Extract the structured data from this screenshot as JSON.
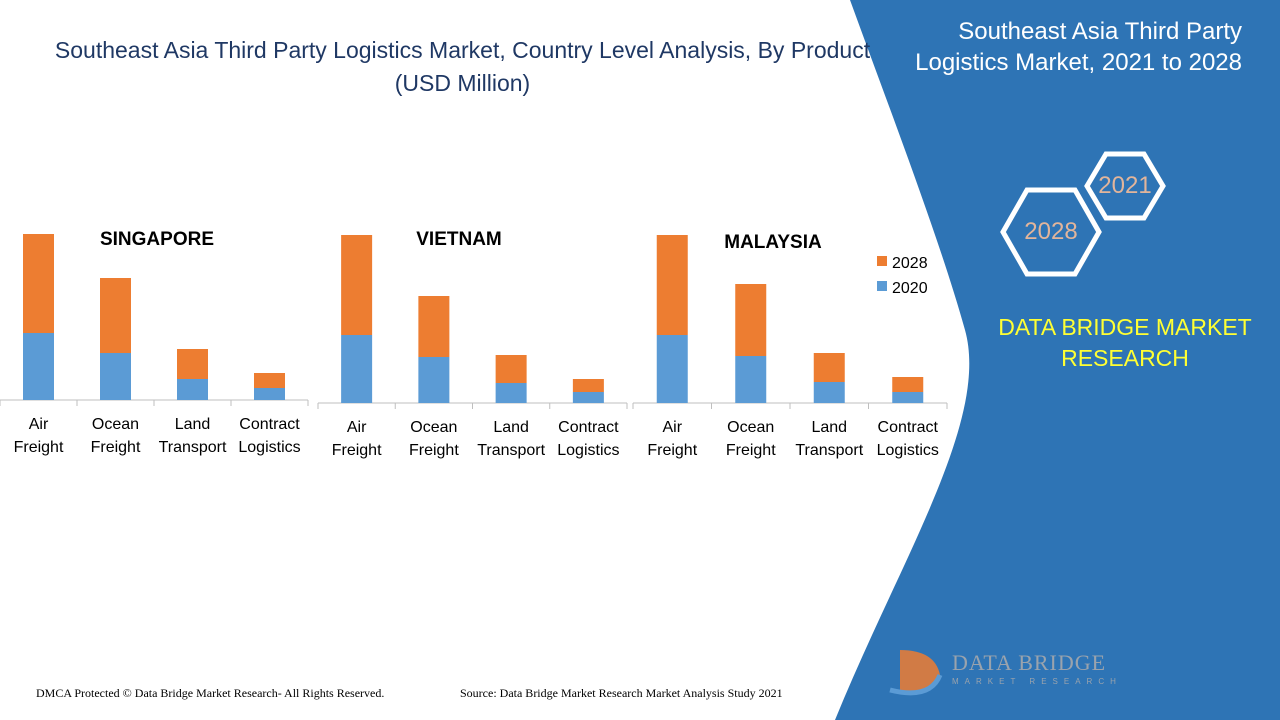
{
  "title": "Southeast Asia Third Party Logistics Market, Country Level Analysis, By Product  (USD Million)",
  "side_panel": {
    "title": "Southeast Asia Third Party Logistics Market, 2021 to 2028",
    "hex_a": "2028",
    "hex_b": "2021",
    "brand": "DATA BRIDGE MARKET RESEARCH"
  },
  "footer": {
    "left": "DMCA Protected © Data Bridge Market Research- All Rights Reserved.",
    "right": "Source: Data Bridge Market Research Market Analysis Study 2021"
  },
  "logo": {
    "name": "DATA BRIDGE",
    "tagline": "MARKET RESEARCH"
  },
  "colors": {
    "s2020": "#5B9BD5",
    "s2028": "#ED7D31",
    "panel": "#2E74B5"
  },
  "chart_data": [
    {
      "type": "bar",
      "stacked": true,
      "title": "SINGAPORE",
      "categories": [
        [
          "Air",
          "Freight"
        ],
        [
          "Ocean",
          "Freight"
        ],
        [
          "Land",
          "Transport"
        ],
        [
          "Contract",
          "Logistics"
        ]
      ],
      "series": [
        {
          "name": "2020",
          "values": [
            67,
            47,
            21,
            12
          ]
        },
        {
          "name": "2028",
          "values": [
            99,
            75,
            30,
            15
          ]
        }
      ]
    },
    {
      "type": "bar",
      "stacked": true,
      "title": "VIETNAM",
      "categories": [
        [
          "Air",
          "Freight"
        ],
        [
          "Ocean",
          "Freight"
        ],
        [
          "Land",
          "Transport"
        ],
        [
          "Contract",
          "Logistics"
        ]
      ],
      "series": [
        {
          "name": "2020",
          "values": [
            68,
            46,
            20,
            11
          ]
        },
        {
          "name": "2028",
          "values": [
            100,
            61,
            28,
            13
          ]
        }
      ]
    },
    {
      "type": "bar",
      "stacked": true,
      "title": "MALAYSIA",
      "categories": [
        [
          "Air",
          "Freight"
        ],
        [
          "Ocean",
          "Freight"
        ],
        [
          "Land",
          "Transport"
        ],
        [
          "Contract",
          "Logistics"
        ]
      ],
      "series": [
        {
          "name": "2020",
          "values": [
            68,
            47,
            21,
            11
          ]
        },
        {
          "name": "2028",
          "values": [
            100,
            72,
            29,
            15
          ]
        }
      ]
    }
  ],
  "legend": [
    "2028",
    "2020"
  ]
}
